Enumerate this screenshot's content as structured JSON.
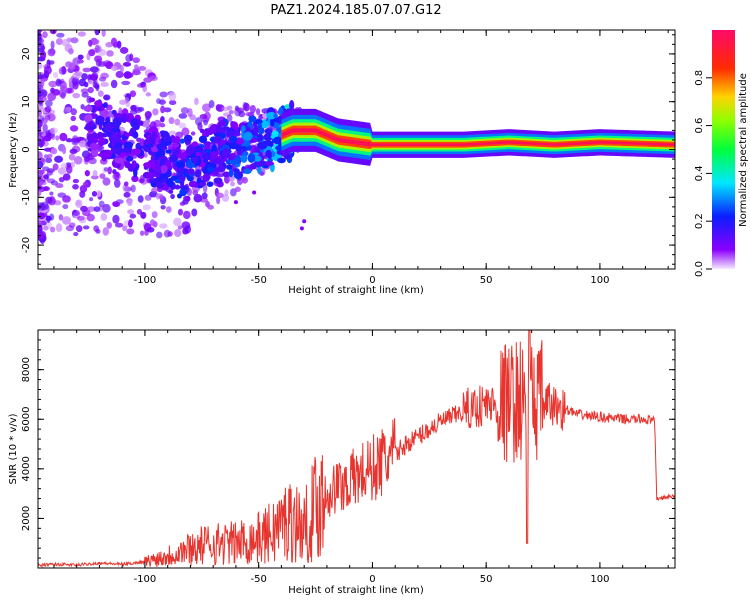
{
  "title": "PAZ1.2024.185.07.07.G12",
  "colors": {
    "snr_line": "#e8342e",
    "axis": "#000000",
    "background": "#ffffff"
  },
  "chart_data": [
    {
      "type": "heatmap",
      "xlabel": "Height of straight line (km)",
      "ylabel": "Frequency (Hz)",
      "xlim": [
        -147,
        133
      ],
      "ylim": [
        -25,
        25
      ],
      "x_ticks": [
        "-100",
        "-50",
        "0",
        "50",
        "100"
      ],
      "y_ticks": [
        "20",
        "10",
        "0",
        "-10",
        "-20"
      ],
      "grid": false,
      "colorbar": {
        "label": "Normalized spectral amplitude",
        "range": [
          0,
          1
        ],
        "ticks": [
          "0.0",
          "0.2",
          "0.4",
          "0.6",
          "0.8"
        ],
        "colormap": "gist_rainbow_r (violet-blue-cyan-green-yellow-red-magenta)"
      },
      "ridge": {
        "description": "dominant frequency ridge",
        "points": [
          {
            "x": -140,
            "f": 8,
            "amp": 0.05
          },
          {
            "x": -120,
            "f": 4,
            "amp": 0.2
          },
          {
            "x": -100,
            "f": 0,
            "amp": 0.2
          },
          {
            "x": -85,
            "f": -4,
            "amp": 0.25
          },
          {
            "x": -70,
            "f": -1,
            "amp": 0.25
          },
          {
            "x": -55,
            "f": 1,
            "amp": 0.3
          },
          {
            "x": -45,
            "f": 2,
            "amp": 0.35
          },
          {
            "x": -35,
            "f": 4,
            "amp": 0.45
          },
          {
            "x": -25,
            "f": 4,
            "amp": 0.6
          },
          {
            "x": -15,
            "f": 2,
            "amp": 0.8
          },
          {
            "x": 0,
            "f": 1,
            "amp": 0.95
          },
          {
            "x": 40,
            "f": 1,
            "amp": 0.95
          },
          {
            "x": 60,
            "f": 1.5,
            "amp": 0.9
          },
          {
            "x": 80,
            "f": 1,
            "amp": 0.9
          },
          {
            "x": 100,
            "f": 1.5,
            "amp": 0.95
          },
          {
            "x": 133,
            "f": 1,
            "amp": 1.0
          }
        ]
      }
    },
    {
      "type": "line",
      "xlabel": "Height of straight line (km)",
      "ylabel": "SNR (10 * v/v)",
      "xlim": [
        -147,
        133
      ],
      "ylim": [
        0,
        9600
      ],
      "x_ticks": [
        "-100",
        "-50",
        "0",
        "50",
        "100"
      ],
      "y_ticks": [
        "2000",
        "4000",
        "6000",
        "8000"
      ],
      "grid": false,
      "series": [
        {
          "color": "#e8342e",
          "x": [
            -147,
            -140,
            -130,
            -120,
            -110,
            -100,
            -90,
            -80,
            -70,
            -60,
            -50,
            -45,
            -40,
            -35,
            -30,
            -25,
            -20,
            -15,
            -10,
            -5,
            0,
            5,
            10,
            15,
            20,
            25,
            30,
            35,
            40,
            45,
            50,
            55,
            60,
            65,
            70,
            75,
            80,
            85,
            90,
            100,
            110,
            120,
            124,
            125,
            133
          ],
          "y": [
            100,
            150,
            120,
            200,
            150,
            250,
            500,
            800,
            1000,
            1000,
            1200,
            1400,
            1800,
            2000,
            1600,
            2500,
            3000,
            3300,
            3500,
            3800,
            4000,
            4300,
            4600,
            5000,
            5300,
            5600,
            5900,
            6100,
            6300,
            6500,
            6600,
            6600,
            6700,
            6800,
            6800,
            6700,
            6500,
            6400,
            6200,
            6100,
            6000,
            6000,
            5900,
            2800,
            2900
          ]
        }
      ]
    }
  ]
}
